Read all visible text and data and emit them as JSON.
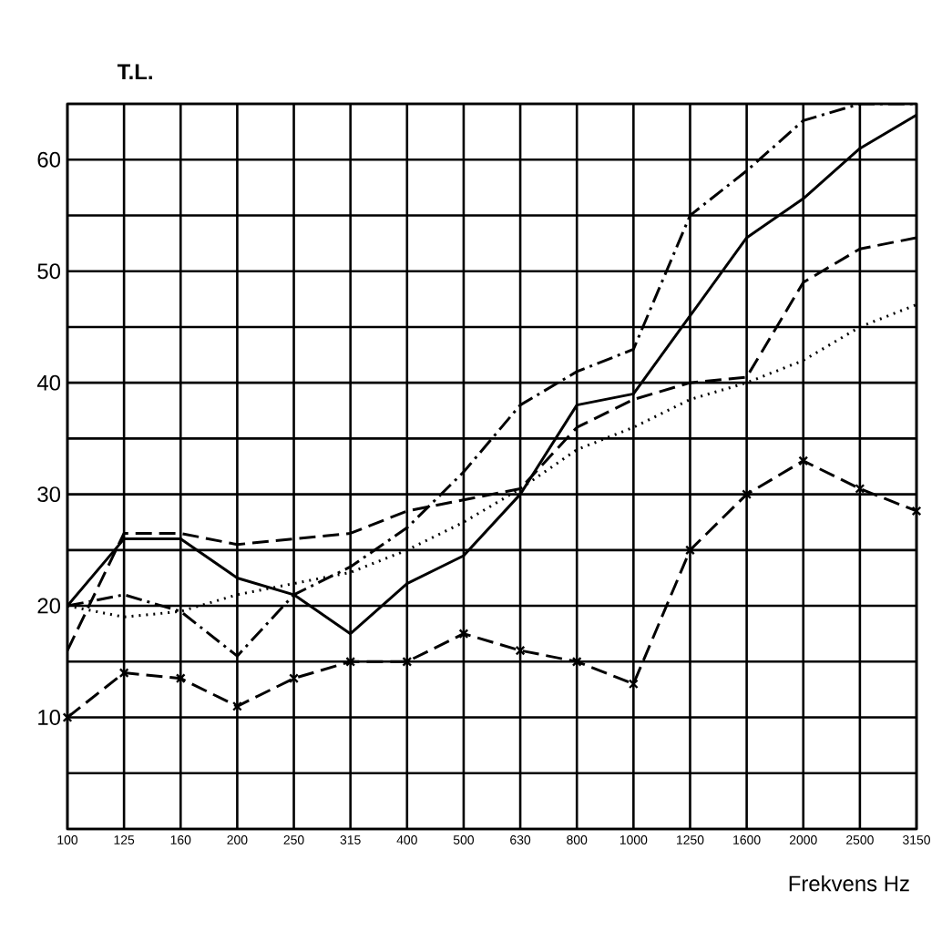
{
  "chart_data": {
    "type": "line",
    "ylabel": "T.L.",
    "xlabel": "Frekvens Hz",
    "categories": [
      "100",
      "125",
      "160",
      "200",
      "250",
      "315",
      "400",
      "500",
      "630",
      "800",
      "1000",
      "1250",
      "1600",
      "2000",
      "2500",
      "3150"
    ],
    "ylim": [
      0,
      65
    ],
    "yticks": [
      {
        "value": 0,
        "label": null
      },
      {
        "value": 5,
        "label": null
      },
      10,
      {
        "value": 15,
        "label": null
      },
      20,
      {
        "value": 25,
        "label": null
      },
      30,
      {
        "value": 35,
        "label": null
      },
      40,
      {
        "value": 45,
        "label": null
      },
      50,
      {
        "value": 55,
        "label": null
      },
      60,
      {
        "value": 65,
        "label": null
      }
    ],
    "grid": true,
    "series": [
      {
        "color": "#000000",
        "line_style": "solid",
        "values": [
          20,
          26,
          26,
          22.5,
          21,
          17.5,
          22,
          24.5,
          30,
          38,
          39,
          46,
          53,
          56.5,
          61,
          64
        ]
      },
      {
        "color": "#000000",
        "line_style": "dashed",
        "values": [
          16,
          26.5,
          26.5,
          25.5,
          26,
          26.5,
          28.5,
          29.5,
          30.5,
          36,
          38.5,
          40,
          40.5,
          49,
          52,
          53
        ]
      },
      {
        "color": "#000000",
        "line_style": "dashdot",
        "values": [
          20,
          21,
          19.5,
          15.5,
          21,
          23.5,
          27,
          32,
          38,
          41,
          43,
          55,
          59,
          63.5,
          65,
          65
        ]
      },
      {
        "color": "#000000",
        "line_style": "dotted",
        "values": [
          20,
          19,
          19.5,
          21,
          22,
          23,
          25,
          27.5,
          30.5,
          34,
          36,
          38.5,
          40,
          42,
          45,
          47
        ]
      },
      {
        "color": "#000000",
        "line_style": "dashed",
        "marker": "cross",
        "values": [
          10,
          14,
          13.5,
          11,
          13.5,
          15,
          15,
          17.5,
          16,
          15,
          13,
          25,
          30,
          33,
          30.5,
          28.5
        ]
      }
    ]
  }
}
